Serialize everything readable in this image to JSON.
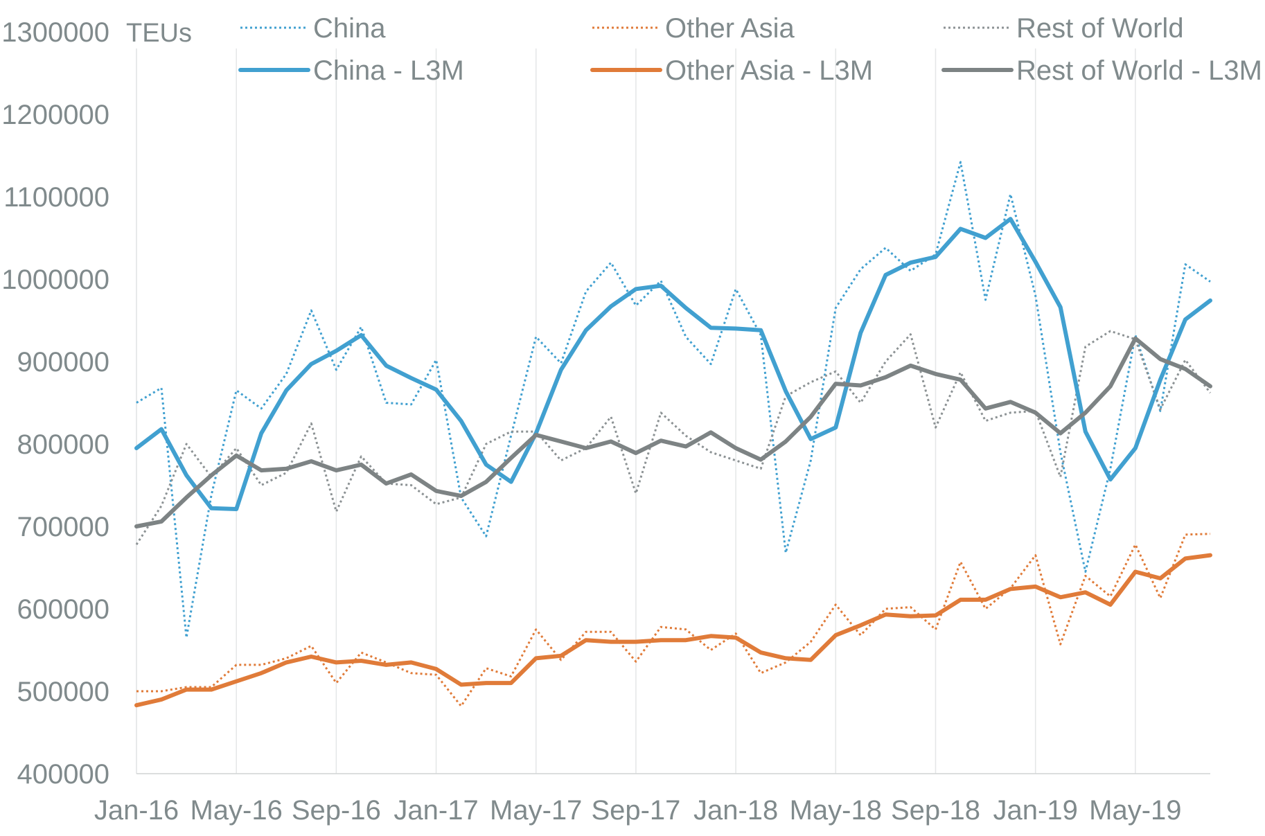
{
  "chart_data": {
    "type": "line",
    "title": "",
    "ylabel": "TEUs",
    "xlabel": "",
    "ylim": [
      400000,
      1300000
    ],
    "yticks": [
      "400000",
      "500000",
      "600000",
      "700000",
      "800000",
      "900000",
      "1000000",
      "1100000",
      "1200000",
      "1300000"
    ],
    "xtick_labels": [
      "Jan-16",
      "May-16",
      "Sep-16",
      "Jan-17",
      "May-17",
      "Sep-17",
      "Jan-18",
      "May-18",
      "Sep-18",
      "Jan-19",
      "May-19"
    ],
    "categories": [
      "Jan-16",
      "Feb-16",
      "Mar-16",
      "Apr-16",
      "May-16",
      "Jun-16",
      "Jul-16",
      "Aug-16",
      "Sep-16",
      "Oct-16",
      "Nov-16",
      "Dec-16",
      "Jan-17",
      "Feb-17",
      "Mar-17",
      "Apr-17",
      "May-17",
      "Jun-17",
      "Jul-17",
      "Aug-17",
      "Sep-17",
      "Oct-17",
      "Nov-17",
      "Dec-17",
      "Jan-18",
      "Feb-18",
      "Mar-18",
      "Apr-18",
      "May-18",
      "Jun-18",
      "Jul-18",
      "Aug-18",
      "Sep-18",
      "Oct-18",
      "Nov-18",
      "Dec-18",
      "Jan-19",
      "Feb-19",
      "Mar-19",
      "Apr-19",
      "May-19",
      "Jun-19",
      "Jul-19",
      "Aug-19"
    ],
    "grid": "vertical",
    "legend_position": "top",
    "series": [
      {
        "name": "China",
        "style": "dotted",
        "color": "#41a0d0",
        "values": [
          850000,
          868000,
          565000,
          738000,
          865000,
          843000,
          885000,
          962000,
          890000,
          942000,
          850000,
          848000,
          902000,
          735000,
          688000,
          810000,
          930000,
          898000,
          985000,
          1020000,
          968000,
          998000,
          930000,
          897000,
          988000,
          932000,
          668000,
          780000,
          965000,
          1012000,
          1038000,
          1010000,
          1030000,
          1142000,
          975000,
          1103000,
          980000,
          790000,
          645000,
          770000,
          932000,
          840000,
          1018000,
          997000
        ]
      },
      {
        "name": "Other Asia",
        "style": "dotted",
        "color": "#e07b39",
        "values": [
          500000,
          500000,
          505000,
          505000,
          532000,
          532000,
          540000,
          555000,
          510000,
          547000,
          535000,
          522000,
          520000,
          482000,
          528000,
          518000,
          575000,
          538000,
          572000,
          572000,
          536000,
          578000,
          575000,
          550000,
          570000,
          522000,
          535000,
          560000,
          605000,
          568000,
          600000,
          602000,
          575000,
          657000,
          600000,
          625000,
          665000,
          557000,
          640000,
          615000,
          678000,
          613000,
          690000,
          691000
        ]
      },
      {
        "name": "Rest of World",
        "style": "dotted",
        "color": "#8c9294",
        "values": [
          678000,
          725000,
          800000,
          760000,
          795000,
          750000,
          765000,
          825000,
          718000,
          785000,
          752000,
          750000,
          727000,
          735000,
          800000,
          815000,
          815000,
          780000,
          795000,
          833000,
          740000,
          838000,
          810000,
          790000,
          780000,
          770000,
          858000,
          875000,
          888000,
          850000,
          900000,
          933000,
          820000,
          887000,
          828000,
          838000,
          840000,
          760000,
          918000,
          937000,
          927000,
          842000,
          902000,
          862000
        ]
      },
      {
        "name": "China - L3M",
        "style": "solid",
        "color": "#41a0d0",
        "values": [
          795000,
          818000,
          762000,
          722000,
          721000,
          813000,
          865000,
          897000,
          913000,
          932000,
          895000,
          880000,
          866000,
          828000,
          775000,
          754000,
          813000,
          890000,
          938000,
          967000,
          988000,
          992000,
          965000,
          941000,
          940000,
          938000,
          864000,
          806000,
          820000,
          935000,
          1005000,
          1020000,
          1027000,
          1061000,
          1050000,
          1073000,
          1021000,
          966000,
          815000,
          757000,
          795000,
          878000,
          951000,
          974000
        ]
      },
      {
        "name": "Other Asia - L3M",
        "style": "solid",
        "color": "#e07b39",
        "values": [
          483000,
          490000,
          502000,
          502000,
          512000,
          522000,
          535000,
          542000,
          535000,
          537000,
          532000,
          535000,
          527000,
          508000,
          510000,
          510000,
          540000,
          543000,
          562000,
          560000,
          560000,
          562000,
          562000,
          567000,
          565000,
          547000,
          540000,
          538000,
          568000,
          580000,
          593000,
          591000,
          592000,
          611000,
          611000,
          624000,
          627000,
          614000,
          620000,
          605000,
          645000,
          637000,
          661000,
          665000
        ]
      },
      {
        "name": "Rest of World - L3M",
        "style": "solid",
        "color": "#7d8384",
        "values": [
          700000,
          706000,
          735000,
          762000,
          786000,
          768000,
          770000,
          779000,
          768000,
          775000,
          752000,
          763000,
          743000,
          737000,
          754000,
          783000,
          811000,
          803000,
          795000,
          803000,
          789000,
          804000,
          797000,
          814000,
          795000,
          781000,
          803000,
          833000,
          873000,
          871000,
          881000,
          895000,
          885000,
          878000,
          843000,
          851000,
          838000,
          813000,
          838000,
          870000,
          928000,
          903000,
          891000,
          870000
        ]
      }
    ]
  }
}
